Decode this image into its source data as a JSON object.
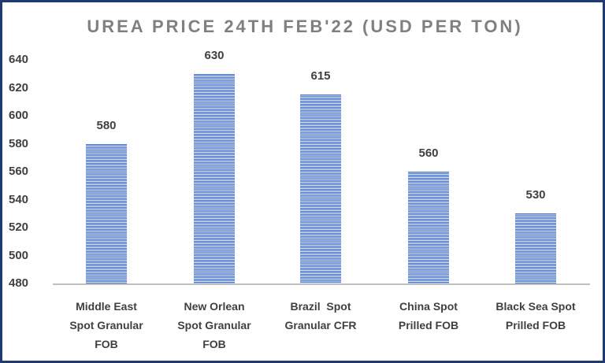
{
  "chart_data": {
    "type": "bar",
    "title": "UREA PRICE 24TH FEB'22 (USD PER TON)",
    "categories": [
      "Middle East Spot Granular FOB",
      "New Orlean Spot Granular FOB",
      "Brazil  Spot Granular CFR",
      "China Spot Prilled FOB",
      "Black Sea Spot Prilled FOB"
    ],
    "category_lines": [
      [
        "Middle East",
        "Spot Granular",
        "FOB"
      ],
      [
        "New Orlean",
        "Spot Granular",
        "FOB"
      ],
      [
        "Brazil  Spot",
        "Granular CFR"
      ],
      [
        "China Spot",
        "Prilled FOB"
      ],
      [
        "Black Sea Spot",
        "Prilled FOB"
      ]
    ],
    "values": [
      580,
      630,
      615,
      560,
      530
    ],
    "data_labels": [
      "580",
      "630",
      "615",
      "560",
      "530"
    ],
    "xlabel": "",
    "ylabel": "",
    "ylim": [
      480,
      640
    ],
    "yticks": [
      "640",
      "620",
      "600",
      "580",
      "560",
      "540",
      "520",
      "500",
      "480"
    ],
    "grid": false,
    "legend": null,
    "bar_color": "#4a74cf",
    "bar_pattern": "horizontal stripes"
  }
}
